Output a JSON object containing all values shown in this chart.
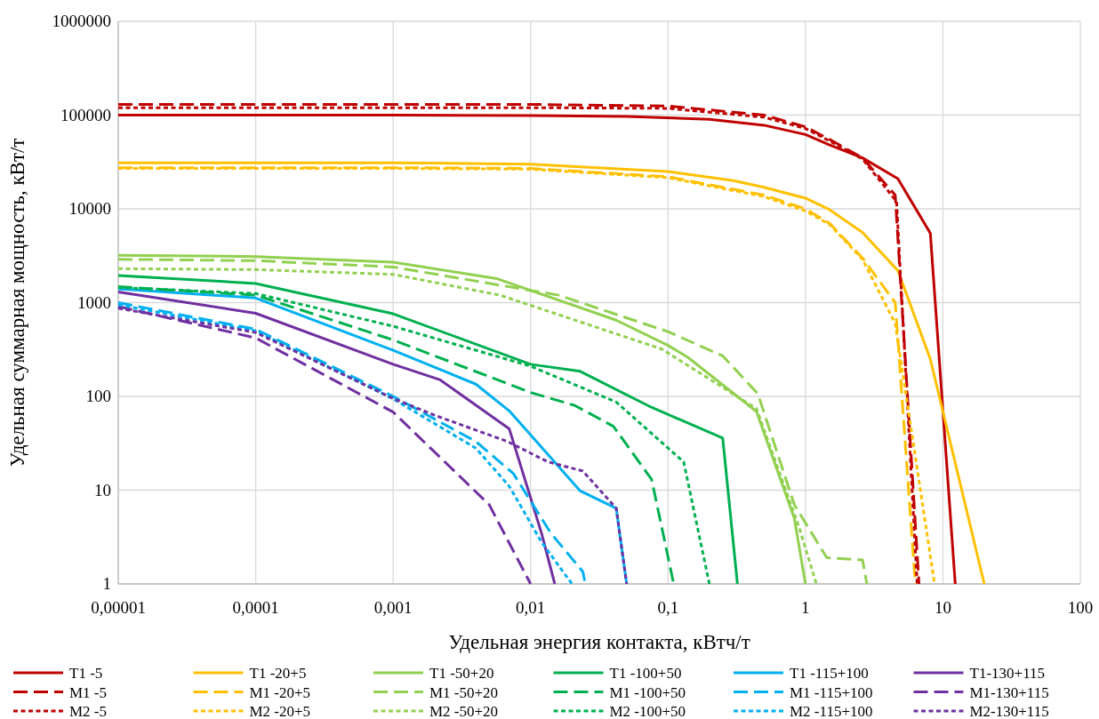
{
  "chart_data": {
    "type": "line",
    "xlabel": "Удельная энергия контакта, кВтч/т",
    "ylabel": "Удельная суммарная мощность, кВт/т",
    "log": "xy",
    "grid": true,
    "legend": "bottom",
    "xlim": [
      1e-05,
      100
    ],
    "ylim": [
      1,
      1000000
    ],
    "xticks": [
      {
        "value": 1e-05,
        "label": "0,00001"
      },
      {
        "value": 0.0001,
        "label": "0,0001"
      },
      {
        "value": 0.001,
        "label": "0,001"
      },
      {
        "value": 0.01,
        "label": "0,01"
      },
      {
        "value": 0.1,
        "label": "0,1"
      },
      1,
      10,
      100
    ],
    "yticks": [
      1,
      10,
      100,
      1000,
      10000,
      100000,
      1000000
    ],
    "series": [
      {
        "name": "T1 -5",
        "color": "#c00000",
        "line_style": "solid",
        "x": [
          1e-05,
          0.0001,
          0.001,
          0.01,
          0.05,
          0.2,
          0.5,
          1,
          1.5,
          2.6,
          4.7,
          8.1,
          12.3
        ],
        "values": [
          100000,
          100000,
          100000,
          99000,
          97000,
          90000,
          78000,
          62000,
          48000,
          35000,
          21000,
          5500,
          1
        ]
      },
      {
        "name": "T1 -20+5",
        "color": "#ffc000",
        "line_style": "solid",
        "x": [
          1e-05,
          0.0001,
          0.001,
          0.01,
          0.1,
          0.3,
          0.5,
          1,
          1.5,
          2.6,
          4.7,
          8.1,
          20
        ],
        "values": [
          31000,
          31000,
          31000,
          30000,
          25000,
          20000,
          17000,
          13000,
          9800,
          5600,
          2200,
          250,
          1
        ]
      },
      {
        "name": "T1 -50+20",
        "color": "#92d050",
        "line_style": "solid",
        "x": [
          1e-05,
          0.0001,
          0.001,
          0.0057,
          0.042,
          0.1,
          0.14,
          0.44,
          0.83,
          1
        ],
        "values": [
          3200,
          3100,
          2700,
          1800,
          650,
          350,
          260,
          69,
          5,
          1
        ]
      },
      {
        "name": "T1 -100+50",
        "color": "#00b050",
        "line_style": "solid",
        "x": [
          1e-05,
          0.0001,
          0.001,
          0.01,
          0.023,
          0.075,
          0.25,
          0.32
        ],
        "values": [
          1950,
          1600,
          760,
          220,
          185,
          77,
          36,
          1
        ]
      },
      {
        "name": "T1 -115+100",
        "color": "#00b0f0",
        "line_style": "solid",
        "x": [
          1e-05,
          0.0001,
          0.001,
          0.004,
          0.007,
          0.023,
          0.042,
          0.05
        ],
        "values": [
          1400,
          1120,
          310,
          135,
          70,
          9.8,
          6.4,
          1
        ]
      },
      {
        "name": "T1-130+115",
        "color": "#7030a0",
        "line_style": "solid",
        "x": [
          1e-05,
          0.0001,
          0.001,
          0.0022,
          0.007,
          0.012,
          0.015
        ],
        "values": [
          1300,
          770,
          220,
          150,
          45,
          3.5,
          1
        ]
      },
      {
        "name": "M1 -5",
        "color": "#c00000",
        "line_style": "dashed",
        "x": [
          1e-05,
          0.0001,
          0.001,
          0.01,
          0.1,
          0.5,
          1,
          1.5,
          2.6,
          4.5,
          6.7
        ],
        "values": [
          130000,
          130000,
          130000,
          130000,
          125000,
          100000,
          75000,
          55000,
          35000,
          14000,
          1
        ]
      },
      {
        "name": "M1 -20+5",
        "color": "#ffc000",
        "line_style": "dashed",
        "x": [
          1e-05,
          0.0001,
          0.001,
          0.01,
          0.1,
          0.5,
          1,
          1.5,
          2.6,
          4.5,
          6.3
        ],
        "values": [
          27500,
          27500,
          27500,
          27000,
          22000,
          14000,
          10000,
          7000,
          3000,
          1000,
          1
        ]
      },
      {
        "name": "M1 -50+20",
        "color": "#92d050",
        "line_style": "dashed",
        "x": [
          1e-05,
          0.0001,
          0.001,
          0.016,
          0.1,
          0.25,
          0.45,
          0.83,
          1.43,
          2.6,
          2.8
        ],
        "values": [
          2900,
          2800,
          2400,
          1200,
          490,
          270,
          107,
          7,
          1.9,
          1.8,
          1
        ]
      },
      {
        "name": "M1 -100+50",
        "color": "#00b050",
        "line_style": "dashed",
        "x": [
          1e-05,
          0.0001,
          0.001,
          0.01,
          0.021,
          0.04,
          0.076,
          0.11
        ],
        "values": [
          1480,
          1200,
          400,
          110,
          80,
          48,
          13,
          1
        ]
      },
      {
        "name": "M1 -115+100",
        "color": "#00b0f0",
        "line_style": "dashed",
        "x": [
          1e-05,
          0.0001,
          0.001,
          0.004,
          0.0075,
          0.014,
          0.024,
          0.025
        ],
        "values": [
          1000,
          520,
          100,
          33,
          15,
          3.5,
          1.35,
          1
        ]
      },
      {
        "name": "M1-130+115",
        "color": "#7030a0",
        "line_style": "dashed",
        "x": [
          1e-05,
          0.0001,
          0.001,
          0.005,
          0.01
        ],
        "values": [
          910,
          420,
          68,
          7,
          1
        ]
      },
      {
        "name": "M2 -5",
        "color": "#c00000",
        "line_style": "dotted",
        "x": [
          1e-05,
          0.0001,
          0.001,
          0.01,
          0.1,
          0.5,
          1,
          1.5,
          2.6,
          4.6,
          6.5
        ],
        "values": [
          120000,
          120000,
          120000,
          120000,
          118000,
          95000,
          72000,
          53000,
          34000,
          12000,
          1
        ]
      },
      {
        "name": "M2 -20+5",
        "color": "#ffc000",
        "line_style": "dotted",
        "x": [
          1e-05,
          0.0001,
          0.001,
          0.01,
          0.1,
          0.5,
          1,
          1.5,
          2.6,
          4.5,
          8.7
        ],
        "values": [
          27000,
          27000,
          27000,
          26500,
          21500,
          13500,
          9500,
          6800,
          2900,
          600,
          1
        ]
      },
      {
        "name": "M2 -50+20",
        "color": "#92d050",
        "line_style": "dotted",
        "x": [
          1e-05,
          0.0001,
          0.001,
          0.006,
          0.09,
          0.44,
          0.9,
          1.2
        ],
        "values": [
          2300,
          2250,
          2000,
          1200,
          320,
          74,
          4,
          1
        ]
      },
      {
        "name": "M2 -100+50",
        "color": "#00b050",
        "line_style": "dotted",
        "x": [
          1e-05,
          0.0001,
          0.001,
          0.01,
          0.042,
          0.13,
          0.2
        ],
        "values": [
          1450,
          1250,
          560,
          210,
          87,
          20,
          1
        ]
      },
      {
        "name": "M2 -115+100",
        "color": "#00b0f0",
        "line_style": "dotted",
        "x": [
          1e-05,
          0.0001,
          0.001,
          0.004,
          0.007,
          0.012,
          0.02
        ],
        "values": [
          950,
          500,
          94,
          28,
          11,
          2.8,
          1
        ]
      },
      {
        "name": "M2-130+115",
        "color": "#7030a0",
        "line_style": "dotted",
        "x": [
          1e-05,
          0.0001,
          0.001,
          0.002,
          0.0068,
          0.0134,
          0.024,
          0.042,
          0.05
        ],
        "values": [
          870,
          480,
          95,
          63,
          33,
          20,
          16,
          6.4,
          1
        ]
      }
    ]
  }
}
